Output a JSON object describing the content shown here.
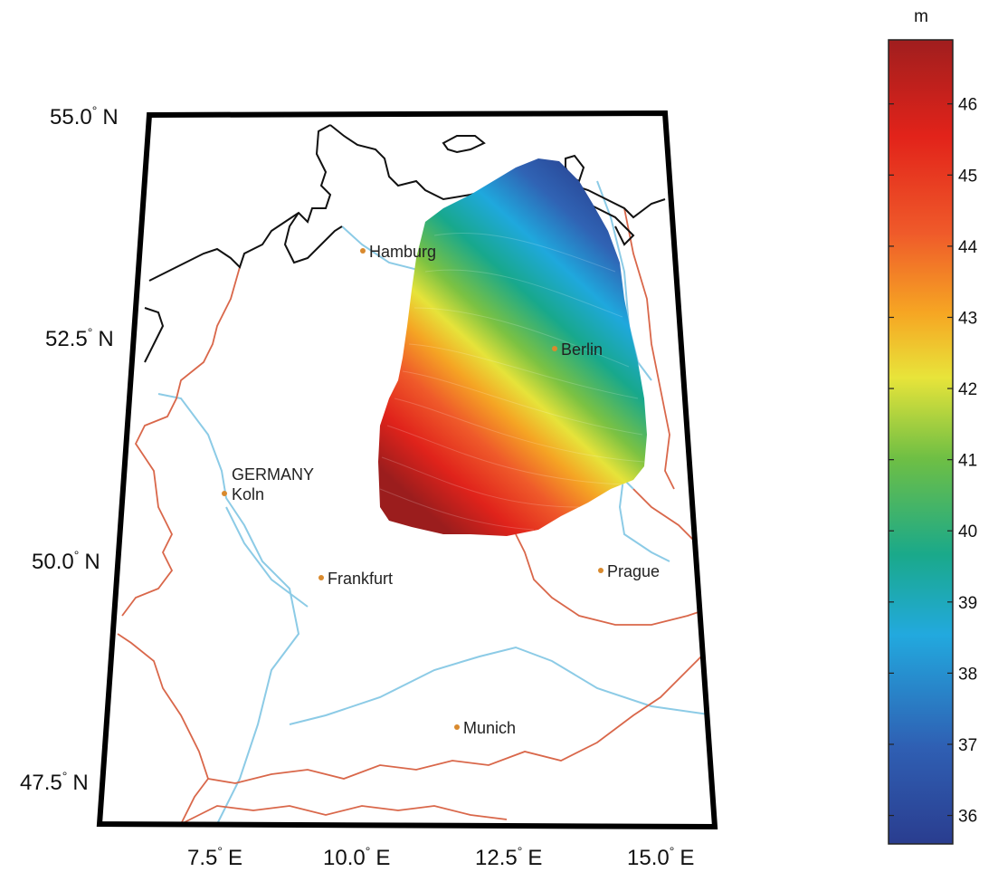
{
  "map": {
    "country_label": "GERMANY",
    "cities": [
      {
        "name": "Hamburg",
        "marker": "city-dot"
      },
      {
        "name": "Berlin",
        "marker": "city-dot"
      },
      {
        "name": "Koln",
        "marker": "city-dot"
      },
      {
        "name": "Frankfurt",
        "marker": "city-dot"
      },
      {
        "name": "Prague",
        "marker": "city-dot"
      },
      {
        "name": "Munich",
        "marker": "city-dot"
      }
    ],
    "lat_labels": [
      {
        "deg": "55.0",
        "hemi": "N"
      },
      {
        "deg": "52.5",
        "hemi": "N"
      },
      {
        "deg": "50.0",
        "hemi": "N"
      },
      {
        "deg": "47.5",
        "hemi": "N"
      }
    ],
    "lon_labels": [
      {
        "deg": "7.5",
        "hemi": "E"
      },
      {
        "deg": "10.0",
        "hemi": "E"
      },
      {
        "deg": "12.5",
        "hemi": "E"
      },
      {
        "deg": "15.0",
        "hemi": "E"
      }
    ],
    "colors": {
      "coastline": "#111111",
      "border": "#d9674a",
      "river": "#8ccbe6",
      "city_marker": "#d98a2e",
      "frame": "#000000"
    }
  },
  "colorbar": {
    "unit": "m",
    "min": 35.6,
    "max": 46.9,
    "ticks": [
      "46",
      "45",
      "44",
      "43",
      "42",
      "41",
      "40",
      "39",
      "38",
      "37",
      "36"
    ],
    "gradient": [
      "#2a3d8f",
      "#2f5fb3",
      "#22a9de",
      "#1aa98a",
      "#8cc63f",
      "#e8e43a",
      "#f6a623",
      "#ef5a2a",
      "#e2231a",
      "#a01e1e"
    ]
  }
}
